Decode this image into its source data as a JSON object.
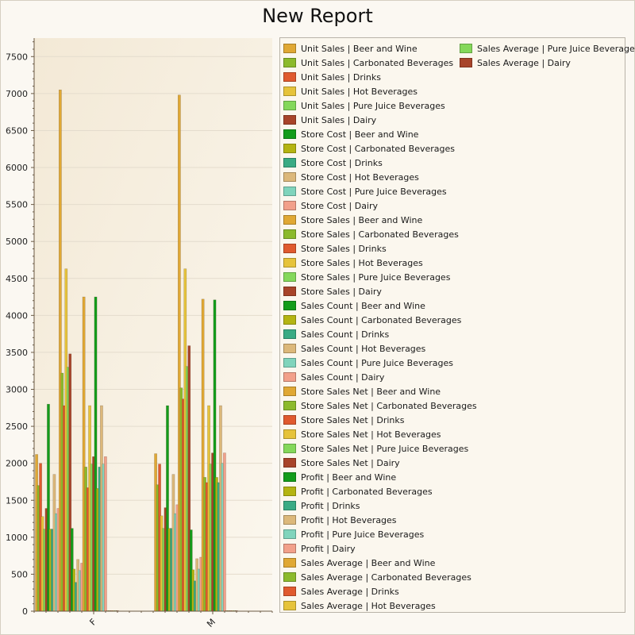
{
  "chart_data": {
    "type": "bar",
    "title": "New Report",
    "categories": [
      "F",
      "M"
    ],
    "ylim": [
      0,
      7750
    ],
    "yticks": [
      0,
      500,
      1000,
      1500,
      2000,
      2500,
      3000,
      3500,
      4000,
      4500,
      5000,
      5500,
      6000,
      6500,
      7000,
      7500
    ],
    "grid": true,
    "legend_position": "right",
    "series": [
      {
        "name": "Unit Sales | Beer and Wine",
        "color": "#e0a834",
        "values": [
          2120,
          2130
        ]
      },
      {
        "name": "Unit Sales | Carbonated Beverages",
        "color": "#8cba2c",
        "values": [
          1700,
          1710
        ]
      },
      {
        "name": "Unit Sales | Drinks",
        "color": "#e05a2e",
        "values": [
          2000,
          1990
        ]
      },
      {
        "name": "Unit Sales | Hot Beverages",
        "color": "#e6c33a",
        "values": [
          1280,
          1290
        ]
      },
      {
        "name": "Unit Sales | Pure Juice Beverages",
        "color": "#84d85a",
        "values": [
          1110,
          1120
        ]
      },
      {
        "name": "Unit Sales | Dairy",
        "color": "#a8442a",
        "values": [
          1390,
          1400
        ]
      },
      {
        "name": "Store Cost | Beer and Wine",
        "color": "#139c1a",
        "values": [
          2800,
          2780
        ]
      },
      {
        "name": "Store Cost | Carbonated Beverages",
        "color": "#b4b412",
        "values": [
          1110,
          1120
        ]
      },
      {
        "name": "Store Cost | Drinks",
        "color": "#3aab84",
        "values": [
          1110,
          1120
        ]
      },
      {
        "name": "Store Cost | Hot Beverages",
        "color": "#dcb87a",
        "values": [
          1850,
          1850
        ]
      },
      {
        "name": "Store Cost | Pure Juice Beverages",
        "color": "#80d4bc",
        "values": [
          1320,
          1320
        ]
      },
      {
        "name": "Store Cost | Dairy",
        "color": "#f2a08a",
        "values": [
          1390,
          1440
        ]
      },
      {
        "name": "Store Sales | Beer and Wine",
        "color": "#e0a834",
        "values": [
          7050,
          6980
        ]
      },
      {
        "name": "Store Sales | Carbonated Beverages",
        "color": "#8cba2c",
        "values": [
          3220,
          3020
        ]
      },
      {
        "name": "Store Sales | Drinks",
        "color": "#e05a2e",
        "values": [
          2780,
          2870
        ]
      },
      {
        "name": "Store Sales | Hot Beverages",
        "color": "#e6c33a",
        "values": [
          4630,
          4630
        ]
      },
      {
        "name": "Store Sales | Pure Juice Beverages",
        "color": "#84d85a",
        "values": [
          3300,
          3310
        ]
      },
      {
        "name": "Store Sales | Dairy",
        "color": "#a8442a",
        "values": [
          3480,
          3590
        ]
      },
      {
        "name": "Sales Count | Beer and Wine",
        "color": "#139c1a",
        "values": [
          1120,
          1100
        ]
      },
      {
        "name": "Sales Count | Carbonated Beverages",
        "color": "#b4b412",
        "values": [
          570,
          560
        ]
      },
      {
        "name": "Sales Count | Drinks",
        "color": "#3aab84",
        "values": [
          390,
          410
        ]
      },
      {
        "name": "Sales Count | Hot Beverages",
        "color": "#dcb87a",
        "values": [
          700,
          710
        ]
      },
      {
        "name": "Sales Count | Pure Juice Beverages",
        "color": "#80d4bc",
        "values": [
          550,
          570
        ]
      },
      {
        "name": "Sales Count | Dairy",
        "color": "#f2a08a",
        "values": [
          650,
          730
        ]
      },
      {
        "name": "Store Sales Net | Beer and Wine",
        "color": "#e0a834",
        "values": [
          4250,
          4220
        ]
      },
      {
        "name": "Store Sales Net | Carbonated Beverages",
        "color": "#8cba2c",
        "values": [
          1950,
          1810
        ]
      },
      {
        "name": "Store Sales Net | Drinks",
        "color": "#e05a2e",
        "values": [
          1670,
          1740
        ]
      },
      {
        "name": "Store Sales Net | Hot Beverages",
        "color": "#e6c33a",
        "values": [
          2780,
          2780
        ]
      },
      {
        "name": "Store Sales Net | Pure Juice Beverages",
        "color": "#84d85a",
        "values": [
          1990,
          1990
        ]
      },
      {
        "name": "Store Sales Net | Dairy",
        "color": "#a8442a",
        "values": [
          2090,
          2140
        ]
      },
      {
        "name": "Profit | Beer and Wine",
        "color": "#139c1a",
        "values": [
          4250,
          4210
        ]
      },
      {
        "name": "Profit | Carbonated Beverages",
        "color": "#b4b412",
        "values": [
          1660,
          1810
        ]
      },
      {
        "name": "Profit | Drinks",
        "color": "#3aab84",
        "values": [
          1950,
          1740
        ]
      },
      {
        "name": "Profit | Hot Beverages",
        "color": "#dcb87a",
        "values": [
          2780,
          2780
        ]
      },
      {
        "name": "Profit | Pure Juice Beverages",
        "color": "#80d4bc",
        "values": [
          1990,
          2000
        ]
      },
      {
        "name": "Profit | Dairy",
        "color": "#f2a08a",
        "values": [
          2090,
          2140
        ]
      },
      {
        "name": "Sales Average | Beer and Wine",
        "color": "#e0a834",
        "values": [
          8,
          8
        ]
      },
      {
        "name": "Sales Average | Carbonated Beverages",
        "color": "#8cba2c",
        "values": [
          8,
          8
        ]
      },
      {
        "name": "Sales Average | Drinks",
        "color": "#e05a2e",
        "values": [
          8,
          8
        ]
      },
      {
        "name": "Sales Average | Hot Beverages",
        "color": "#e6c33a",
        "values": [
          8,
          8
        ]
      },
      {
        "name": "Sales Average | Pure Juice Beverages",
        "color": "#84d85a",
        "values": [
          8,
          8
        ]
      },
      {
        "name": "Sales Average | Dairy",
        "color": "#a8442a",
        "values": [
          8,
          8
        ]
      }
    ]
  }
}
